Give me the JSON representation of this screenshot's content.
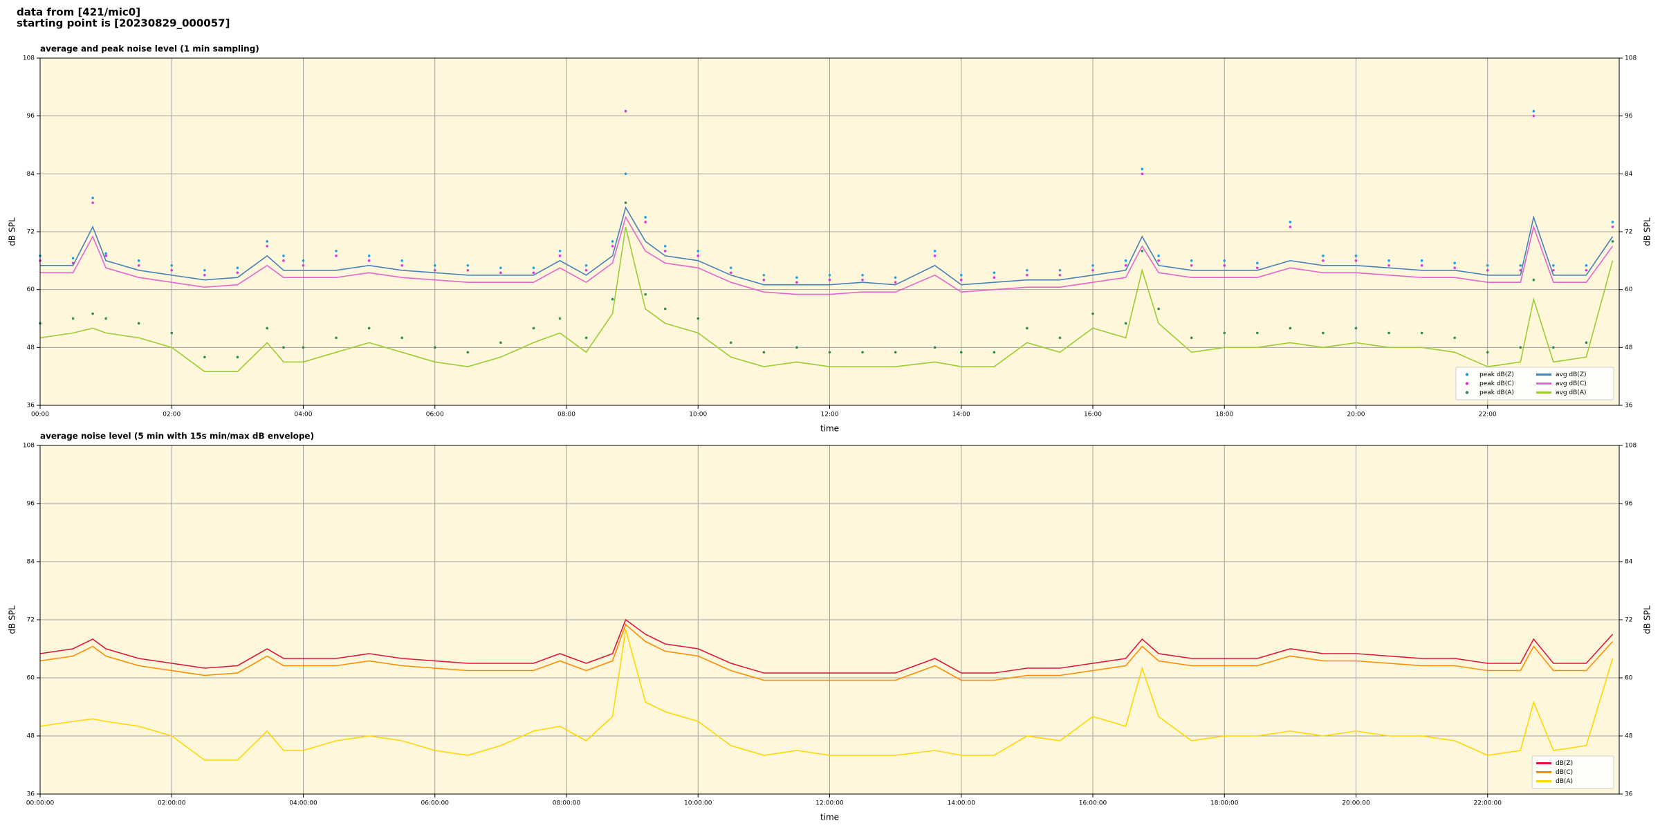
{
  "header": [
    "data from [421/mic0]",
    "starting point is [20230829_000057]"
  ],
  "chart_data": [
    {
      "type": "line",
      "title": "average and peak noise level (1 min sampling)",
      "xlabel": "time",
      "ylabel": "dB SPL",
      "xlim": [
        0,
        24
      ],
      "ylim": [
        36,
        108
      ],
      "yticks": [
        36,
        48,
        60,
        72,
        84,
        96,
        108
      ],
      "mirror_y": true,
      "grid": true,
      "background": "#fff7dc",
      "legend": "lower right",
      "legend_ncol": 2,
      "xticks": [
        {
          "value": 0,
          "label": "00:00"
        },
        {
          "value": 2,
          "label": "02:00"
        },
        {
          "value": 4,
          "label": "04:00"
        },
        {
          "value": 6,
          "label": "06:00"
        },
        {
          "value": 8,
          "label": "08:00"
        },
        {
          "value": 10,
          "label": "10:00"
        },
        {
          "value": 12,
          "label": "12:00"
        },
        {
          "value": 14,
          "label": "14:00"
        },
        {
          "value": 16,
          "label": "16:00"
        },
        {
          "value": 18,
          "label": "18:00"
        },
        {
          "value": 20,
          "label": "20:00"
        },
        {
          "value": 22,
          "label": "22:00"
        }
      ],
      "x": [
        0,
        0.5,
        0.8,
        1,
        1.5,
        2,
        2.5,
        3,
        3.45,
        3.7,
        4,
        4.5,
        5,
        5.5,
        6,
        6.5,
        7,
        7.5,
        7.9,
        8.3,
        8.7,
        8.9,
        9.2,
        9.5,
        10,
        10.5,
        11,
        11.5,
        12,
        12.5,
        13,
        13.6,
        14,
        14.5,
        15,
        15.5,
        16,
        16.5,
        16.75,
        17,
        17.5,
        18,
        18.5,
        19,
        19.5,
        20,
        20.5,
        21,
        21.5,
        22,
        22.5,
        22.7,
        23,
        23.5,
        23.9
      ],
      "series": [
        {
          "name": "peak dB(Z)",
          "style": "points",
          "color": "#1f9fdf",
          "values": [
            67,
            66.5,
            79,
            67.5,
            66,
            65,
            64,
            64.5,
            70,
            67,
            66,
            68,
            67,
            66,
            65,
            65,
            64.5,
            64.5,
            68,
            65,
            70,
            84,
            75,
            69,
            68,
            64.5,
            63,
            62.5,
            63,
            63,
            62.5,
            68,
            63,
            63.5,
            64,
            64,
            65,
            66,
            85,
            67,
            66,
            66,
            65.5,
            74,
            67,
            67,
            66,
            66,
            65.5,
            65,
            65,
            97,
            65,
            65,
            74
          ]
        },
        {
          "name": "peak dB(C)",
          "style": "points",
          "color": "#d63ad6",
          "values": [
            66,
            65.5,
            78,
            67,
            65,
            64,
            63,
            63.5,
            69,
            66,
            65,
            67,
            66,
            65,
            64,
            64,
            63.5,
            63.5,
            67,
            64,
            69,
            97,
            74,
            68,
            67,
            63.5,
            62,
            61.5,
            62,
            62,
            61.5,
            67,
            62,
            62.5,
            63,
            63,
            64,
            65,
            84,
            66,
            65,
            65,
            64.5,
            73,
            66,
            66,
            65,
            65,
            64.5,
            64,
            64,
            96,
            64,
            64,
            73
          ]
        },
        {
          "name": "peak dB(A)",
          "style": "points",
          "color": "#2e8b57",
          "values": [
            53,
            54,
            55,
            54,
            53,
            51,
            46,
            46,
            52,
            48,
            48,
            50,
            52,
            50,
            48,
            47,
            49,
            52,
            54,
            50,
            58,
            78,
            59,
            56,
            54,
            49,
            47,
            48,
            47,
            47,
            47,
            48,
            47,
            47,
            52,
            50,
            55,
            53,
            68,
            56,
            50,
            51,
            51,
            52,
            51,
            52,
            51,
            51,
            50,
            47,
            48,
            62,
            48,
            49,
            70
          ]
        },
        {
          "name": "avg dB(Z)",
          "style": "line",
          "color": "#4682b4",
          "values": [
            65,
            65,
            73,
            66,
            64,
            63,
            62,
            62.5,
            67,
            64,
            64,
            64,
            65,
            64,
            63.5,
            63,
            63,
            63,
            66,
            63,
            67,
            77,
            70,
            67,
            66,
            63,
            61,
            61,
            61,
            61.5,
            61,
            65,
            61,
            61.5,
            62,
            62,
            63,
            64,
            71,
            65,
            64,
            64,
            64,
            66,
            65,
            65,
            64.5,
            64,
            64,
            63,
            63,
            75,
            63,
            63,
            71
          ]
        },
        {
          "name": "avg dB(C)",
          "style": "line",
          "color": "#e466cc",
          "values": [
            63.5,
            63.5,
            71,
            64.5,
            62.5,
            61.5,
            60.5,
            61,
            65,
            62.5,
            62.5,
            62.5,
            63.5,
            62.5,
            62,
            61.5,
            61.5,
            61.5,
            64.5,
            61.5,
            65.5,
            75,
            68,
            65.5,
            64.5,
            61.5,
            59.5,
            59,
            59,
            59.5,
            59.5,
            63,
            59.5,
            60,
            60.5,
            60.5,
            61.5,
            62.5,
            69,
            63.5,
            62.5,
            62.5,
            62.5,
            64.5,
            63.5,
            63.5,
            63,
            62.5,
            62.5,
            61.5,
            61.5,
            73,
            61.5,
            61.5,
            69
          ]
        },
        {
          "name": "avg dB(A)",
          "style": "line",
          "color": "#9acd32",
          "values": [
            50,
            51,
            52,
            51,
            50,
            48,
            43,
            43,
            49,
            45,
            45,
            47,
            49,
            47,
            45,
            44,
            46,
            49,
            51,
            47,
            55,
            73,
            56,
            53,
            51,
            46,
            44,
            45,
            44,
            44,
            44,
            45,
            44,
            44,
            49,
            47,
            52,
            50,
            64,
            53,
            47,
            48,
            48,
            49,
            48,
            49,
            48,
            48,
            47,
            44,
            45,
            58,
            45,
            46,
            66
          ]
        }
      ]
    },
    {
      "type": "line",
      "title": "average noise level (5 min with 15s min/max dB envelope)",
      "xlabel": "time",
      "ylabel": "dB SPL",
      "xlim": [
        0,
        24
      ],
      "ylim": [
        36,
        108
      ],
      "yticks": [
        36,
        48,
        60,
        72,
        84,
        96,
        108
      ],
      "mirror_y": true,
      "grid": true,
      "background": "#fff7dc",
      "legend": "lower right",
      "legend_ncol": 1,
      "xticks": [
        {
          "value": 0,
          "label": "00:00:00"
        },
        {
          "value": 2,
          "label": "02:00:00"
        },
        {
          "value": 4,
          "label": "04:00:00"
        },
        {
          "value": 6,
          "label": "06:00:00"
        },
        {
          "value": 8,
          "label": "08:00:00"
        },
        {
          "value": 10,
          "label": "10:00:00"
        },
        {
          "value": 12,
          "label": "12:00:00"
        },
        {
          "value": 14,
          "label": "14:00:00"
        },
        {
          "value": 16,
          "label": "16:00:00"
        },
        {
          "value": 18,
          "label": "18:00:00"
        },
        {
          "value": 20,
          "label": "20:00:00"
        },
        {
          "value": 22,
          "label": "22:00:00"
        }
      ],
      "x": [
        0,
        0.5,
        0.8,
        1,
        1.5,
        2,
        2.5,
        3,
        3.45,
        3.7,
        4,
        4.5,
        5,
        5.5,
        6,
        6.5,
        7,
        7.5,
        7.9,
        8.3,
        8.7,
        8.9,
        9.2,
        9.5,
        10,
        10.5,
        11,
        11.5,
        12,
        12.5,
        13,
        13.6,
        14,
        14.5,
        15,
        15.5,
        16,
        16.5,
        16.75,
        17,
        17.5,
        18,
        18.5,
        19,
        19.5,
        20,
        20.5,
        21,
        21.5,
        22,
        22.5,
        22.7,
        23,
        23.5,
        23.9
      ],
      "series": [
        {
          "name": "dB(Z)",
          "style": "line",
          "color": "#dc143c",
          "values": [
            65,
            66,
            68,
            66,
            64,
            63,
            62,
            62.5,
            66,
            64,
            64,
            64,
            65,
            64,
            63.5,
            63,
            63,
            63,
            65,
            63,
            65,
            72,
            69,
            67,
            66,
            63,
            61,
            61,
            61,
            61,
            61,
            64,
            61,
            61,
            62,
            62,
            63,
            64,
            68,
            65,
            64,
            64,
            64,
            66,
            65,
            65,
            64.5,
            64,
            64,
            63,
            63,
            68,
            63,
            63,
            69
          ]
        },
        {
          "name": "dB(C)",
          "style": "line",
          "color": "#ff8c00",
          "values": [
            63.5,
            64.5,
            66.5,
            64.5,
            62.5,
            61.5,
            60.5,
            61,
            64.5,
            62.5,
            62.5,
            62.5,
            63.5,
            62.5,
            62,
            61.5,
            61.5,
            61.5,
            63.5,
            61.5,
            63.5,
            71,
            67.5,
            65.5,
            64.5,
            61.5,
            59.5,
            59.5,
            59.5,
            59.5,
            59.5,
            62.5,
            59.5,
            59.5,
            60.5,
            60.5,
            61.5,
            62.5,
            66.5,
            63.5,
            62.5,
            62.5,
            62.5,
            64.5,
            63.5,
            63.5,
            63,
            62.5,
            62.5,
            61.5,
            61.5,
            66.5,
            61.5,
            61.5,
            67.5
          ]
        },
        {
          "name": "dB(A)",
          "style": "line",
          "color": "#ffd700",
          "values": [
            50,
            51,
            51.5,
            51,
            50,
            48,
            43,
            43,
            49,
            45,
            45,
            47,
            48,
            47,
            45,
            44,
            46,
            49,
            50,
            47,
            52,
            70,
            55,
            53,
            51,
            46,
            44,
            45,
            44,
            44,
            44,
            45,
            44,
            44,
            48,
            47,
            52,
            50,
            62,
            52,
            47,
            48,
            48,
            49,
            48,
            49,
            48,
            48,
            47,
            44,
            45,
            55,
            45,
            46,
            64
          ]
        }
      ]
    }
  ]
}
